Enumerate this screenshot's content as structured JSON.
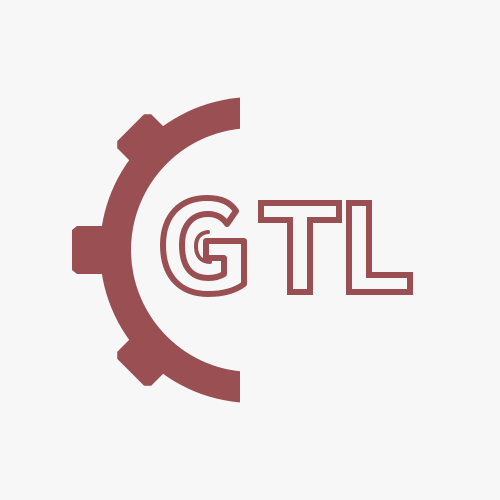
{
  "logo": {
    "text": "GTL",
    "letters": [
      "G",
      "T",
      "L"
    ],
    "icon": "gear-icon",
    "colors": {
      "brand": "#9a4f53",
      "background": "#f7f7f7"
    }
  }
}
